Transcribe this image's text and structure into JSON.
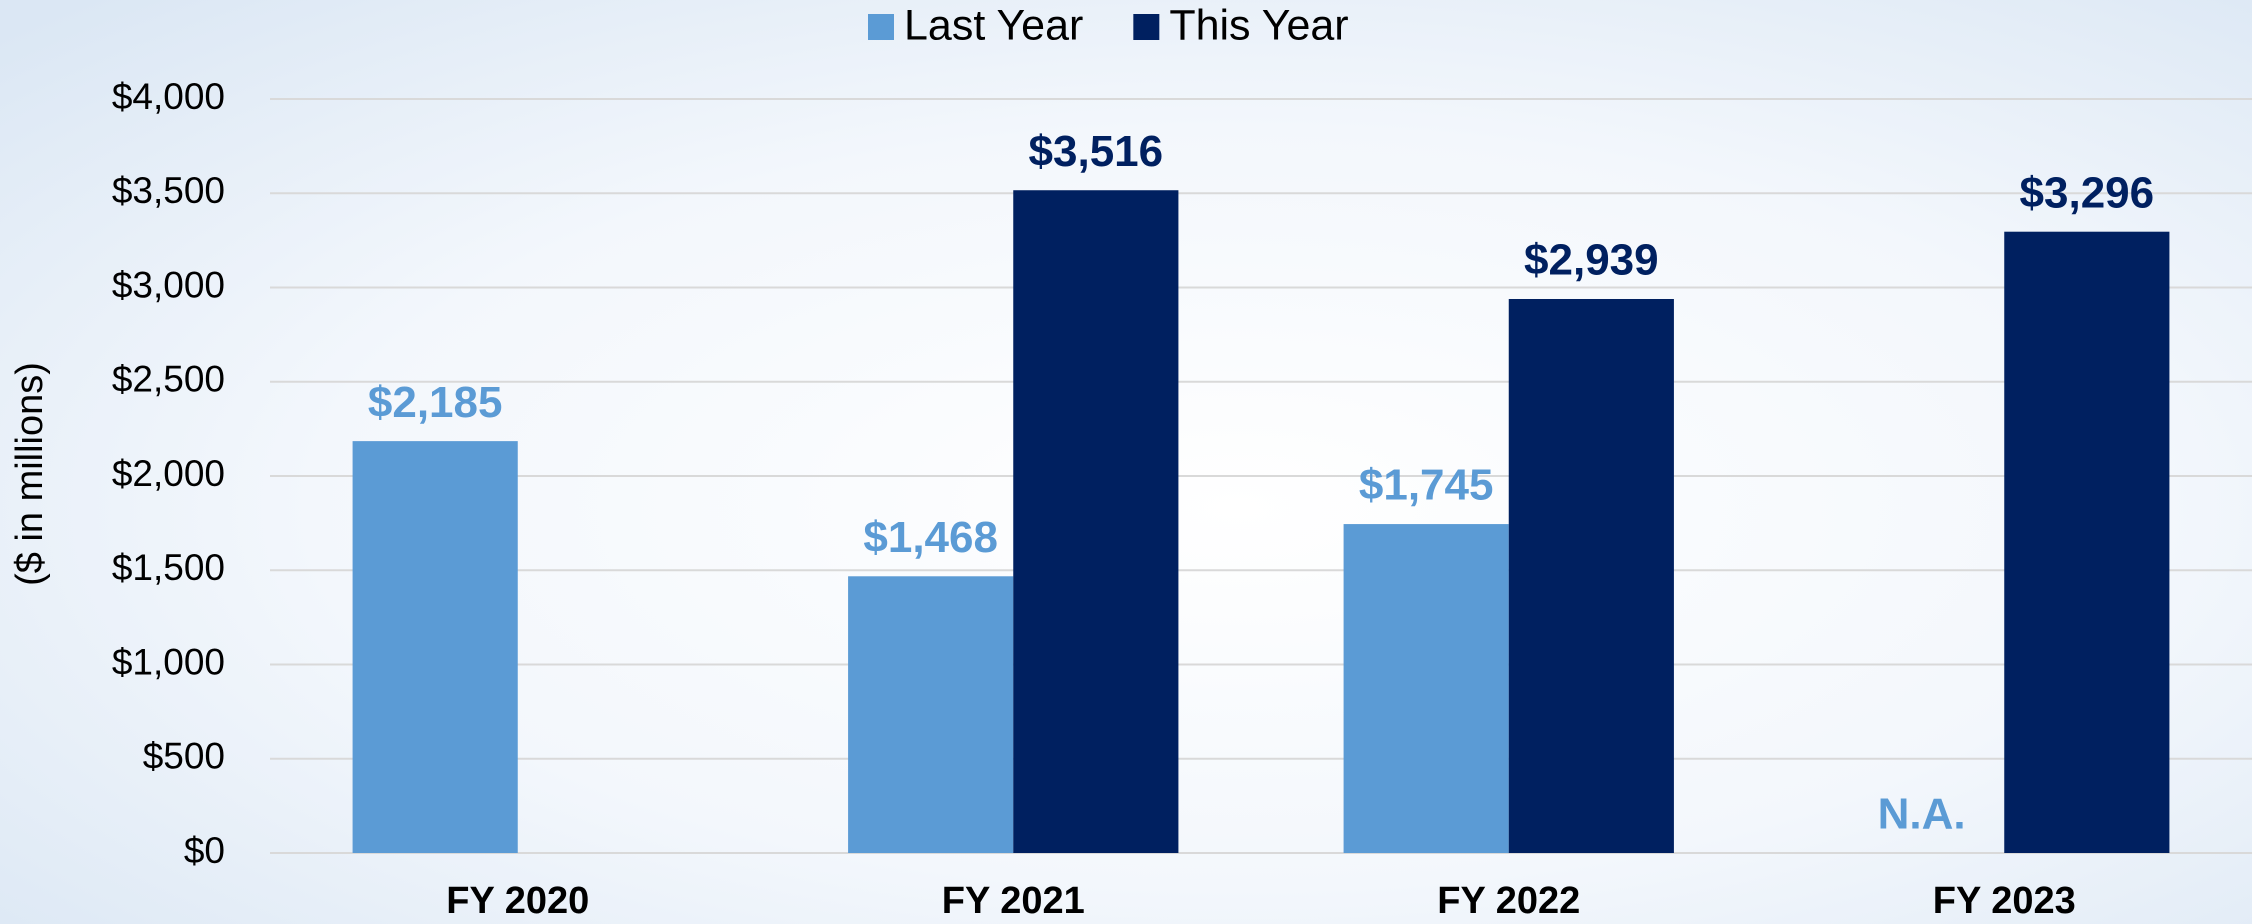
{
  "chart_data": {
    "type": "bar",
    "y_label": "($ in millions)",
    "categories": [
      "FY 2020",
      "FY 2021",
      "FY 2022",
      "FY 2023"
    ],
    "series": [
      {
        "name": "Last Year",
        "color": "#5b9bd5",
        "values": [
          2185,
          1468,
          1745,
          null
        ],
        "value_labels": [
          "$2,185",
          "$1,468",
          "$1,745",
          "N.A."
        ]
      },
      {
        "name": "This Year",
        "color": "#002060",
        "values": [
          null,
          3516,
          2939,
          3296
        ],
        "value_labels": [
          null,
          "$3,516",
          "$2,939",
          "$3,296"
        ]
      }
    ],
    "ylim": [
      0,
      4000
    ],
    "yticks": [
      {
        "value": 0,
        "label": "$0"
      },
      {
        "value": 500,
        "label": "$500"
      },
      {
        "value": 1000,
        "label": "$1,000"
      },
      {
        "value": 1500,
        "label": "$1,500"
      },
      {
        "value": 2000,
        "label": "$2,000"
      },
      {
        "value": 2500,
        "label": "$2,500"
      },
      {
        "value": 3000,
        "label": "$3,000"
      },
      {
        "value": 3500,
        "label": "$3,500"
      },
      {
        "value": 4000,
        "label": "$4,000"
      }
    ],
    "grid": true,
    "legend": "top"
  }
}
